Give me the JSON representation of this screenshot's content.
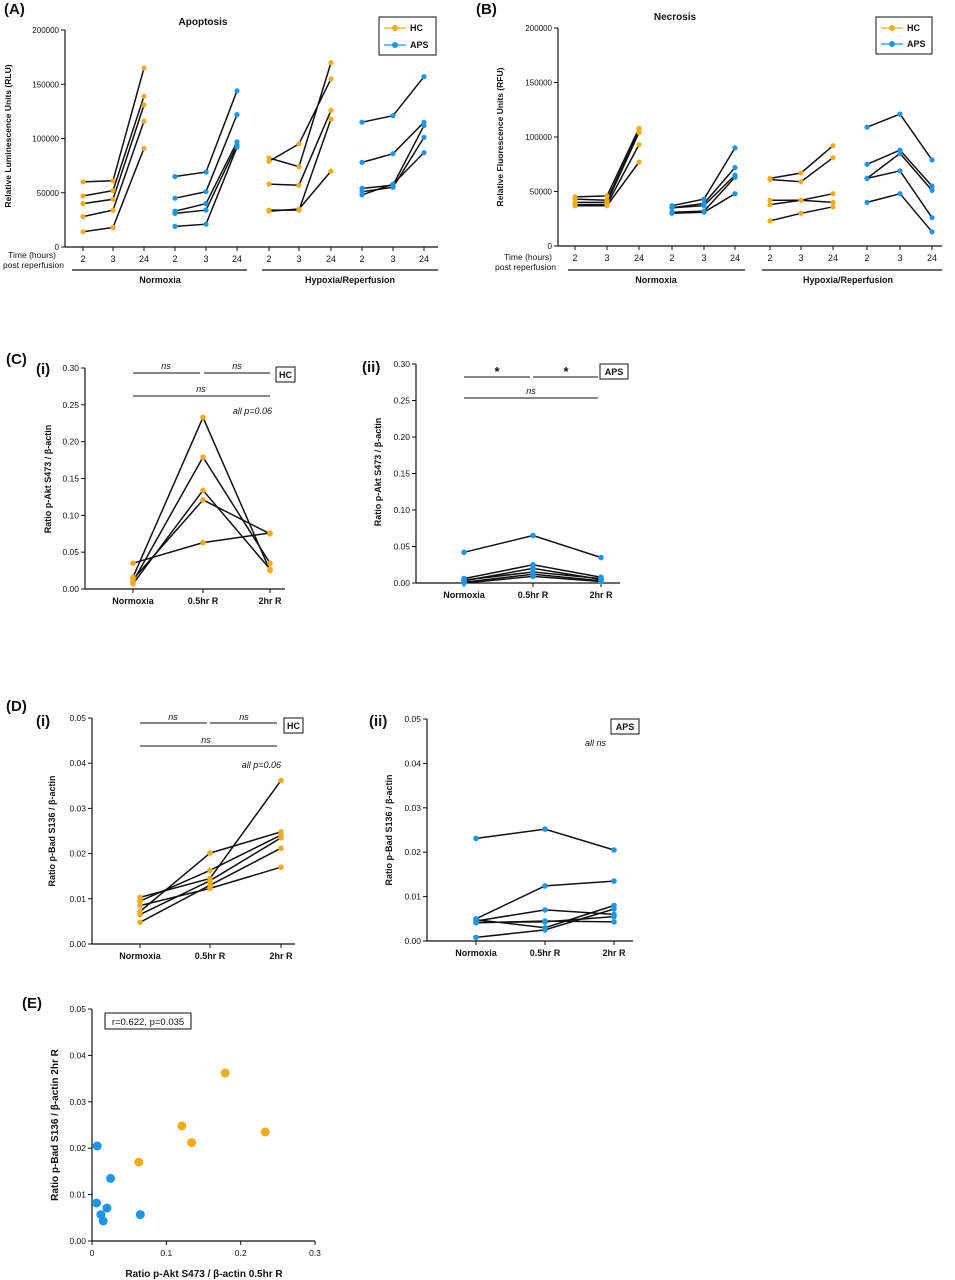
{
  "colors": {
    "hc": "#f0ac1c",
    "aps": "#1e96e8",
    "line": "#111111"
  },
  "legend": {
    "hc": "HC",
    "aps": "APS"
  },
  "panels": {
    "A": {
      "tag": "(A)",
      "title": "Apoptosis",
      "ylabel": "Relative Luminescence Units (RLU)",
      "yticks": [
        "0",
        "50000",
        "100000",
        "150000",
        "200000"
      ],
      "time_label_1": "Time (hours)",
      "time_label_2": "post reperfusion",
      "xticks": [
        "2",
        "3",
        "24",
        "2",
        "3",
        "24",
        "2",
        "3",
        "24",
        "2",
        "3",
        "24"
      ],
      "group1": "Normoxia",
      "group2": "Hypoxia/Reperfusion"
    },
    "B": {
      "tag": "(B)",
      "title": "Necrosis",
      "ylabel": "Relative Fluorescence Units (RFU)",
      "yticks": [
        "0",
        "50000",
        "100000",
        "150000",
        "200000"
      ],
      "time_label_1": "Time (hours)",
      "time_label_2": "post reperfusion",
      "xticks": [
        "2",
        "3",
        "24",
        "2",
        "3",
        "24",
        "2",
        "3",
        "24",
        "2",
        "3",
        "24"
      ],
      "group1": "Normoxia",
      "group2": "Hypoxia/Reperfusion"
    },
    "C": {
      "tag": "(C)",
      "sub_i": "(i)",
      "sub_ii": "(ii)",
      "ylabel": "Ratio p-Akt S473 / β-actin",
      "yticks": [
        "0.00",
        "0.05",
        "0.10",
        "0.15",
        "0.20",
        "0.25",
        "0.30"
      ],
      "xticks": [
        "Normoxia",
        "0.5hr R",
        "2hr R"
      ],
      "box_i": "HC",
      "box_ii": "APS",
      "sig_i": [
        "ns",
        "ns",
        "ns"
      ],
      "sig_ii": [
        "*",
        "*",
        "ns"
      ],
      "note_i": "all p=0.06"
    },
    "D": {
      "tag": "(D)",
      "sub_i": "(i)",
      "sub_ii": "(ii)",
      "ylabel": "Ratio p-Bad S136 / β-actin",
      "yticks": [
        "0.00",
        "0.01",
        "0.02",
        "0.03",
        "0.04",
        "0.05"
      ],
      "xticks": [
        "Normoxia",
        "0.5hr R",
        "2hr R"
      ],
      "box_i": "HC",
      "box_ii": "APS",
      "sig_i": [
        "ns",
        "ns",
        "ns"
      ],
      "note_i": "all p=0.06",
      "note_ii": "all ns"
    },
    "E": {
      "tag": "(E)",
      "ylabel": "Ratio p-Bad S136 / β-actin 2hr R",
      "xlabel": "Ratio p-Akt S473 / β-actin 0.5hr R",
      "yticks": [
        "0.00",
        "0.01",
        "0.02",
        "0.03",
        "0.04",
        "0.05"
      ],
      "xticks": [
        "0",
        "0.1",
        "0.2",
        "0.3"
      ],
      "stat": "r=0.622, p=0.035"
    }
  },
  "chart_data": [
    {
      "id": "A",
      "type": "line",
      "title": "Apoptosis",
      "ylabel": "Relative Luminescence Units (RLU)",
      "ylim": [
        0,
        200000
      ],
      "x_groups": [
        "Normoxia",
        "Hypoxia/Reperfusion"
      ],
      "timepoints": [
        "2",
        "3",
        "24"
      ],
      "series": [
        {
          "name": "HC",
          "block": 0,
          "lines": [
            [
              60000,
              61000,
              165000
            ],
            [
              47000,
              52000,
              139000
            ],
            [
              40000,
              44000,
              131000
            ],
            [
              28000,
              34000,
              116000
            ],
            [
              14000,
              18000,
              91000
            ]
          ]
        },
        {
          "name": "APS",
          "block": 0,
          "lines": [
            [
              65000,
              69000,
              144000
            ],
            [
              45000,
              51000,
              122000
            ],
            [
              33000,
              40000,
              97000
            ],
            [
              31000,
              34000,
              94000
            ],
            [
              19000,
              21000,
              92000
            ]
          ]
        },
        {
          "name": "HC",
          "block": 1,
          "lines": [
            [
              82000,
              74000,
              170000
            ],
            [
              79000,
              95000,
              155000
            ],
            [
              58000,
              57000,
              126000
            ],
            [
              34000,
              34000,
              118000
            ],
            [
              33000,
              35000,
              70000
            ]
          ]
        },
        {
          "name": "APS",
          "block": 1,
          "lines": [
            [
              115000,
              121000,
              157000
            ],
            [
              78000,
              86000,
              115000
            ],
            [
              54000,
              57000,
              112000
            ],
            [
              51000,
              55000,
              101000
            ],
            [
              48000,
              58000,
              87000
            ]
          ]
        }
      ]
    },
    {
      "id": "B",
      "type": "line",
      "title": "Necrosis",
      "ylabel": "Relative Fluorescence Units (RFU)",
      "ylim": [
        0,
        200000
      ],
      "x_groups": [
        "Normoxia",
        "Hypoxia/Reperfusion"
      ],
      "timepoints": [
        "2",
        "3",
        "24"
      ],
      "series": [
        {
          "name": "HC",
          "block": 0,
          "lines": [
            [
              45000,
              46000,
              108000
            ],
            [
              43000,
              42000,
              106000
            ],
            [
              40000,
              40000,
              104000
            ],
            [
              38000,
              38000,
              93000
            ],
            [
              37000,
              37000,
              77000
            ]
          ]
        },
        {
          "name": "APS",
          "block": 0,
          "lines": [
            [
              37000,
              43000,
              90000
            ],
            [
              35000,
              39000,
              72000
            ],
            [
              35000,
              37000,
              65000
            ],
            [
              31000,
              32000,
              63000
            ],
            [
              30000,
              31000,
              48000
            ]
          ]
        },
        {
          "name": "HC",
          "block": 1,
          "lines": [
            [
              62000,
              67000,
              92000
            ],
            [
              61000,
              59000,
              81000
            ],
            [
              42000,
              42000,
              48000
            ],
            [
              38000,
              42000,
              40000
            ],
            [
              23000,
              30000,
              36000
            ]
          ]
        },
        {
          "name": "APS",
          "block": 1,
          "lines": [
            [
              109000,
              121000,
              79000
            ],
            [
              75000,
              88000,
              55000
            ],
            [
              62000,
              85000,
              51000
            ],
            [
              62000,
              69000,
              26000
            ],
            [
              40000,
              48000,
              13000
            ]
          ]
        }
      ]
    },
    {
      "id": "C-i",
      "type": "line",
      "ylabel": "Ratio p-Akt S473 / β-actin",
      "ylim": [
        0,
        0.3
      ],
      "categories": [
        "Normoxia",
        "0.5hr R",
        "2hr R"
      ],
      "group": "HC",
      "lines": [
        [
          0.035,
          0.063,
          0.076
        ],
        [
          0.016,
          0.233,
          0.025
        ],
        [
          0.013,
          0.121,
          0.075
        ],
        [
          0.01,
          0.179,
          0.035
        ],
        [
          0.007,
          0.134,
          0.027
        ]
      ]
    },
    {
      "id": "C-ii",
      "type": "line",
      "ylabel": "Ratio p-Akt S473 / β-actin",
      "ylim": [
        0,
        0.3
      ],
      "categories": [
        "Normoxia",
        "0.5hr R",
        "2hr R"
      ],
      "group": "APS",
      "lines": [
        [
          0.042,
          0.065,
          0.035
        ],
        [
          0.006,
          0.025,
          0.008
        ],
        [
          0.004,
          0.015,
          0.006
        ],
        [
          0.003,
          0.02,
          0.005
        ],
        [
          0.001,
          0.012,
          0.003
        ],
        [
          0.0,
          0.009,
          0.002
        ]
      ]
    },
    {
      "id": "D-i",
      "type": "line",
      "ylabel": "Ratio p-Bad S136 / β-actin",
      "ylim": [
        0,
        0.05
      ],
      "categories": [
        "Normoxia",
        "0.5hr R",
        "2hr R"
      ],
      "group": "HC",
      "lines": [
        [
          0.0103,
          0.0145,
          0.0362
        ],
        [
          0.0095,
          0.0163,
          0.0241
        ],
        [
          0.0085,
          0.0123,
          0.017
        ],
        [
          0.0072,
          0.0201,
          0.0248
        ],
        [
          0.0065,
          0.014,
          0.0235
        ],
        [
          0.0048,
          0.013,
          0.0212
        ]
      ]
    },
    {
      "id": "D-ii",
      "type": "line",
      "ylabel": "Ratio p-Bad S136 / β-actin",
      "ylim": [
        0,
        0.05
      ],
      "categories": [
        "Normoxia",
        "0.5hr R",
        "2hr R"
      ],
      "group": "APS",
      "lines": [
        [
          0.0231,
          0.0252,
          0.0205
        ],
        [
          0.005,
          0.0124,
          0.0135
        ],
        [
          0.0045,
          0.007,
          0.006
        ],
        [
          0.0048,
          0.003,
          0.008
        ],
        [
          0.0042,
          0.0043,
          0.0055
        ],
        [
          0.0008,
          0.0025,
          0.0072
        ],
        [
          0.0041,
          0.0045,
          0.0043
        ]
      ]
    },
    {
      "id": "E",
      "type": "scatter",
      "xlabel": "Ratio p-Akt S473 / β-actin 0.5hr R",
      "ylabel": "Ratio p-Bad S136 / β-actin 2hr R",
      "xlim": [
        0,
        0.3
      ],
      "ylim": [
        0,
        0.05
      ],
      "annotation": "r=0.622, p=0.035",
      "series": [
        {
          "name": "HC",
          "points": [
            [
              0.063,
              0.017
            ],
            [
              0.121,
              0.0248
            ],
            [
              0.134,
              0.0212
            ],
            [
              0.179,
              0.0362
            ],
            [
              0.233,
              0.0235
            ]
          ]
        },
        {
          "name": "APS",
          "points": [
            [
              0.007,
              0.0205
            ],
            [
              0.006,
              0.0082
            ],
            [
              0.012,
              0.0057
            ],
            [
              0.015,
              0.0043
            ],
            [
              0.02,
              0.0071
            ],
            [
              0.025,
              0.0135
            ],
            [
              0.065,
              0.0057
            ]
          ]
        }
      ]
    }
  ]
}
